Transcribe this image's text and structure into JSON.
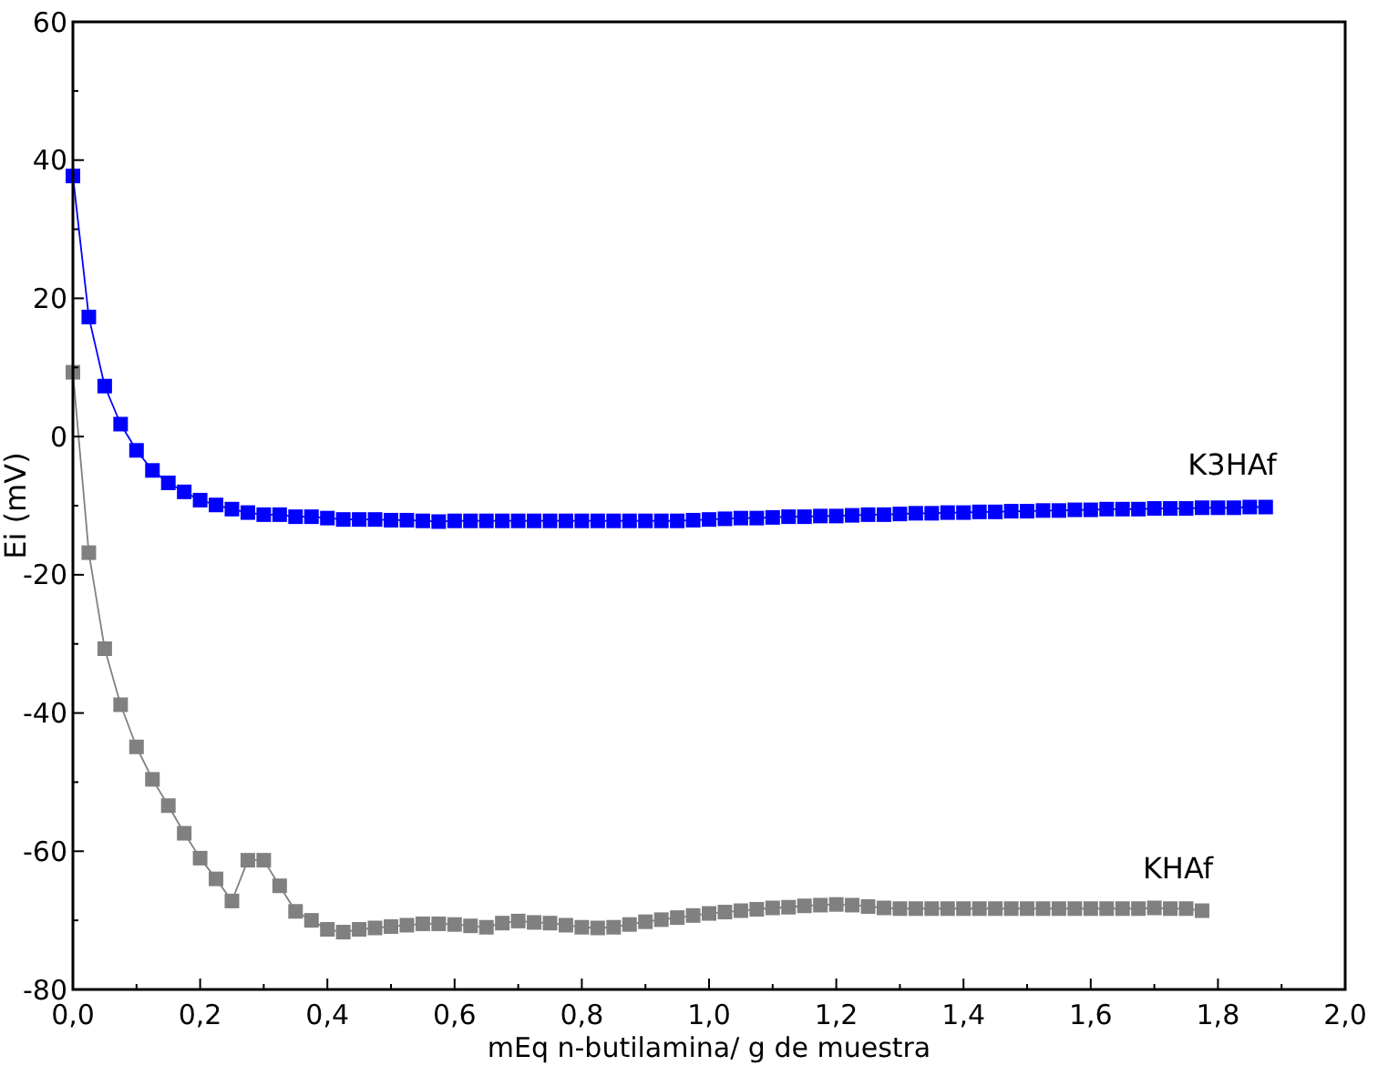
{
  "chart_data": {
    "type": "line",
    "xlabel": "mEq n-butilamina/ g de muestra",
    "ylabel": "Ei (mV)",
    "xlim": [
      0,
      2
    ],
    "ylim": [
      -80,
      60
    ],
    "xticks": [
      {
        "value": 0,
        "label": "0,0"
      },
      {
        "value": 0.1,
        "label": null
      },
      {
        "value": 0.2,
        "label": "0,2"
      },
      {
        "value": 0.3,
        "label": null
      },
      {
        "value": 0.4,
        "label": "0,4"
      },
      {
        "value": 0.5,
        "label": null
      },
      {
        "value": 0.6,
        "label": "0,6"
      },
      {
        "value": 0.7,
        "label": null
      },
      {
        "value": 0.8,
        "label": "0,8"
      },
      {
        "value": 0.9,
        "label": null
      },
      {
        "value": 1,
        "label": "1,0"
      },
      {
        "value": 1.1,
        "label": null
      },
      {
        "value": 1.2,
        "label": "1,2"
      },
      {
        "value": 1.3,
        "label": null
      },
      {
        "value": 1.4,
        "label": "1,4"
      },
      {
        "value": 1.5,
        "label": null
      },
      {
        "value": 1.6,
        "label": "1,6"
      },
      {
        "value": 1.7,
        "label": null
      },
      {
        "value": 1.8,
        "label": "1,8"
      },
      {
        "value": 1.9,
        "label": null
      },
      {
        "value": 2,
        "label": "2,0"
      }
    ],
    "yticks": [
      -80,
      {
        "value": -70,
        "label": null
      },
      -60,
      {
        "value": -50,
        "label": null
      },
      -40,
      {
        "value": -30,
        "label": null
      },
      -20,
      {
        "value": -10,
        "label": null
      },
      0,
      {
        "value": 10,
        "label": null
      },
      20,
      {
        "value": 30,
        "label": null
      },
      40,
      {
        "value": 50,
        "label": null
      },
      60
    ],
    "grid": false,
    "marker": "square",
    "line_style": "solid",
    "series": [
      {
        "name": "K3HAf",
        "color": "#0000ff",
        "x": [
          0,
          0.025,
          0.05,
          0.075,
          0.1,
          0.125,
          0.15,
          0.175,
          0.2,
          0.225,
          0.25,
          0.275,
          0.3,
          0.325,
          0.35,
          0.375,
          0.4,
          0.425,
          0.45,
          0.475,
          0.5,
          0.525,
          0.55,
          0.575,
          0.6,
          0.625,
          0.65,
          0.675,
          0.7,
          0.725,
          0.75,
          0.775,
          0.8,
          0.825,
          0.85,
          0.875,
          0.9,
          0.925,
          0.95,
          0.975,
          1,
          1.025,
          1.05,
          1.075,
          1.1,
          1.125,
          1.15,
          1.175,
          1.2,
          1.225,
          1.25,
          1.275,
          1.3,
          1.325,
          1.35,
          1.375,
          1.4,
          1.425,
          1.45,
          1.475,
          1.5,
          1.525,
          1.55,
          1.575,
          1.6,
          1.625,
          1.65,
          1.675,
          1.7,
          1.725,
          1.75,
          1.775,
          1.8,
          1.825,
          1.85,
          1.875
        ],
        "values": [
          37.7,
          17.3,
          7.3,
          1.8,
          -2,
          -4.9,
          -6.7,
          -8,
          -9.2,
          -9.9,
          -10.5,
          -11,
          -11.3,
          -11.3,
          -11.6,
          -11.6,
          -11.8,
          -12,
          -12,
          -12,
          -12.1,
          -12.1,
          -12.2,
          -12.3,
          -12.2,
          -12.2,
          -12.2,
          -12.2,
          -12.2,
          -12.2,
          -12.2,
          -12.2,
          -12.2,
          -12.2,
          -12.2,
          -12.2,
          -12.2,
          -12.2,
          -12.2,
          -12.1,
          -12,
          -11.9,
          -11.8,
          -11.8,
          -11.7,
          -11.6,
          -11.6,
          -11.5,
          -11.5,
          -11.4,
          -11.3,
          -11.3,
          -11.2,
          -11.1,
          -11.1,
          -11,
          -11,
          -10.9,
          -10.9,
          -10.8,
          -10.8,
          -10.7,
          -10.7,
          -10.6,
          -10.6,
          -10.5,
          -10.5,
          -10.5,
          -10.4,
          -10.4,
          -10.4,
          -10.3,
          -10.3,
          -10.3,
          -10.2,
          -10.2
        ]
      },
      {
        "name": "KHAf",
        "color": "#808080",
        "x": [
          0,
          0.025,
          0.05,
          0.075,
          0.1,
          0.125,
          0.15,
          0.175,
          0.2,
          0.225,
          0.25,
          0.275,
          0.3,
          0.325,
          0.35,
          0.375,
          0.4,
          0.425,
          0.45,
          0.475,
          0.5,
          0.525,
          0.55,
          0.575,
          0.6,
          0.625,
          0.65,
          0.675,
          0.7,
          0.725,
          0.75,
          0.775,
          0.8,
          0.825,
          0.85,
          0.875,
          0.9,
          0.925,
          0.95,
          0.975,
          1,
          1.025,
          1.05,
          1.075,
          1.1,
          1.125,
          1.15,
          1.175,
          1.2,
          1.225,
          1.25,
          1.275,
          1.3,
          1.325,
          1.35,
          1.375,
          1.4,
          1.425,
          1.45,
          1.475,
          1.5,
          1.525,
          1.55,
          1.575,
          1.6,
          1.625,
          1.65,
          1.675,
          1.7,
          1.725,
          1.75,
          1.775
        ],
        "values": [
          9.3,
          -16.8,
          -30.7,
          -38.8,
          -44.9,
          -49.6,
          -53.4,
          -57.4,
          -61,
          -64,
          -67.2,
          -61.3,
          -61.3,
          -65,
          -68.7,
          -70,
          -71.3,
          -71.7,
          -71.3,
          -71.1,
          -70.9,
          -70.7,
          -70.5,
          -70.5,
          -70.6,
          -70.8,
          -71,
          -70.4,
          -70.1,
          -70.3,
          -70.4,
          -70.7,
          -71,
          -71.1,
          -71,
          -70.6,
          -70.2,
          -69.9,
          -69.6,
          -69.3,
          -69,
          -68.8,
          -68.6,
          -68.4,
          -68.2,
          -68.1,
          -67.9,
          -67.8,
          -67.7,
          -67.8,
          -68,
          -68.2,
          -68.3,
          -68.3,
          -68.3,
          -68.3,
          -68.3,
          -68.3,
          -68.3,
          -68.3,
          -68.3,
          -68.3,
          -68.3,
          -68.3,
          -68.3,
          -68.3,
          -68.3,
          -68.3,
          -68.2,
          -68.3,
          -68.3,
          -68.6
        ]
      }
    ]
  }
}
